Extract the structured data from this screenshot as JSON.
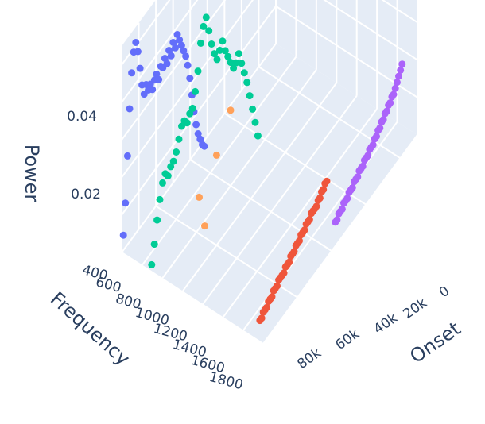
{
  "chart_data": {
    "type": "scatter3d",
    "axes": {
      "x": {
        "title": "Frequency",
        "ticks": [
          "400",
          "600",
          "800",
          "1000",
          "1200",
          "1400",
          "1600",
          "1800"
        ]
      },
      "y": {
        "title": "Onset",
        "ticks": [
          "0",
          "20k",
          "40k",
          "60k",
          "80k"
        ]
      },
      "z": {
        "title": "Power",
        "ticks": [
          "0.02",
          "0.04"
        ]
      }
    },
    "grid": true,
    "series": [
      {
        "color": "#636efa",
        "x": [
          400,
          403,
          407,
          411,
          414,
          418,
          421,
          425,
          429,
          432,
          436,
          439,
          443,
          447,
          450,
          454,
          457,
          461,
          465,
          468,
          472,
          475,
          479,
          483,
          486,
          490,
          493,
          497,
          501,
          504,
          508,
          511,
          515,
          519,
          522,
          526,
          529,
          533,
          537,
          540
        ],
        "y": [
          1000,
          2000,
          3000,
          4000,
          5000,
          6000,
          7000,
          8000,
          9000,
          10000,
          11000,
          12000,
          13000,
          14000,
          15000,
          16000,
          17000,
          18000,
          19000,
          20000,
          21000,
          22000,
          23000,
          24000,
          25000,
          26000,
          27000,
          28000,
          29000,
          30000,
          31000,
          32000,
          33000,
          34000,
          35000,
          36000,
          37000,
          38000,
          39000,
          40000
        ],
        "z": [
          0.004,
          0.012,
          0.024,
          0.036,
          0.045,
          0.05,
          0.052,
          0.049,
          0.044,
          0.039,
          0.036,
          0.038,
          0.036,
          0.037,
          0.035,
          0.037,
          0.038,
          0.036,
          0.039,
          0.038,
          0.04,
          0.038,
          0.041,
          0.039,
          0.042,
          0.04,
          0.043,
          0.041,
          0.039,
          0.037,
          0.035,
          0.032,
          0.028,
          0.023,
          0.018,
          0.014,
          0.011,
          0.009,
          0.007,
          0.006
        ]
      },
      {
        "color": "#00cc96",
        "x": [
          680,
          690,
          700,
          710,
          720,
          730,
          740,
          750,
          760,
          770,
          780,
          790,
          800,
          810,
          820,
          830,
          840,
          850,
          860,
          870,
          880,
          890,
          900,
          910,
          920,
          930,
          940,
          950,
          960,
          970,
          980,
          990,
          1000,
          1010,
          1020,
          1030,
          1040,
          1050,
          1060,
          1070
        ],
        "y": [
          1000,
          2000,
          3000,
          4000,
          5000,
          6000,
          7000,
          8000,
          9000,
          10000,
          11000,
          12000,
          13000,
          14000,
          15000,
          16000,
          17000,
          18000,
          19000,
          20000,
          21000,
          22000,
          23000,
          24000,
          25000,
          26000,
          27000,
          28000,
          29000,
          30000,
          31000,
          32000,
          33000,
          34000,
          35000,
          36000,
          37000,
          38000,
          39000,
          40000
        ],
        "z": [
          0.001,
          0.006,
          0.012,
          0.017,
          0.021,
          0.023,
          0.022,
          0.024,
          0.025,
          0.027,
          0.03,
          0.033,
          0.034,
          0.033,
          0.035,
          0.036,
          0.04,
          0.045,
          0.052,
          0.056,
          0.058,
          0.054,
          0.05,
          0.047,
          0.045,
          0.047,
          0.049,
          0.046,
          0.044,
          0.042,
          0.04,
          0.041,
          0.043,
          0.04,
          0.037,
          0.034,
          0.03,
          0.026,
          0.022,
          0.018
        ]
      },
      {
        "color": "#ef553b",
        "x": [
          1700,
          1700,
          1700,
          1700,
          1700,
          1700,
          1700,
          1700,
          1700,
          1700,
          1700,
          1700,
          1700,
          1700,
          1700,
          1700,
          1700,
          1700,
          1700,
          1700,
          1700,
          1700,
          1700,
          1700,
          1700,
          1700,
          1700,
          1700,
          1700,
          1700,
          1700,
          1700,
          1700,
          1700,
          1700,
          1700,
          1700,
          1700,
          1700,
          1700
        ],
        "y": [
          4000,
          5000,
          6000,
          7000,
          8000,
          9000,
          10000,
          11000,
          12000,
          13000,
          14000,
          15000,
          16000,
          17000,
          18000,
          19000,
          20000,
          21000,
          22000,
          23000,
          24000,
          25000,
          26000,
          27000,
          28000,
          29000,
          30000,
          31000,
          32000,
          33000,
          34000,
          35000,
          36000,
          37000,
          38000,
          39000,
          40000,
          41000,
          42000,
          43000
        ],
        "z": [
          0.002,
          0.002,
          0.003,
          0.003,
          0.003,
          0.004,
          0.004,
          0.004,
          0.005,
          0.005,
          0.005,
          0.006,
          0.006,
          0.006,
          0.006,
          0.007,
          0.007,
          0.007,
          0.008,
          0.008,
          0.008,
          0.009,
          0.009,
          0.009,
          0.01,
          0.01,
          0.01,
          0.011,
          0.011,
          0.011,
          0.012,
          0.012,
          0.012,
          0.012,
          0.013,
          0.013,
          0.014,
          0.014,
          0.015,
          0.015
        ]
      },
      {
        "color": "#ab63fa",
        "x": [
          1700,
          1700,
          1700,
          1700,
          1700,
          1700,
          1700,
          1700,
          1700,
          1700,
          1700,
          1700,
          1700,
          1700,
          1700,
          1700,
          1700,
          1700,
          1700,
          1700,
          1700,
          1700,
          1700,
          1700,
          1700,
          1700,
          1700,
          1700,
          1700,
          1700,
          1700,
          1700,
          1700,
          1700,
          1700,
          1700,
          1700,
          1700,
          1700,
          1700
        ],
        "y": [
          48000,
          49000,
          50000,
          51000,
          52000,
          53000,
          54000,
          55000,
          56000,
          57000,
          58000,
          59000,
          60000,
          61000,
          62000,
          63000,
          64000,
          65000,
          66000,
          67000,
          68000,
          69000,
          70000,
          71000,
          72000,
          73000,
          74000,
          75000,
          76000,
          77000,
          78000,
          79000,
          80000,
          81000,
          82000,
          83000,
          84000,
          85000,
          86000,
          87000
        ],
        "z": [
          0.001,
          0.001,
          0.002,
          0.002,
          0.002,
          0.003,
          0.003,
          0.003,
          0.004,
          0.004,
          0.004,
          0.005,
          0.005,
          0.005,
          0.006,
          0.006,
          0.006,
          0.007,
          0.007,
          0.007,
          0.008,
          0.008,
          0.008,
          0.009,
          0.009,
          0.01,
          0.01,
          0.011,
          0.011,
          0.012,
          0.012,
          0.013,
          0.013,
          0.014,
          0.014,
          0.015,
          0.016,
          0.017,
          0.018,
          0.019
        ]
      },
      {
        "color": "#ffa15a",
        "x": [
          900,
          980,
          1000,
          1020
        ],
        "y": [
          19000,
          11000,
          20000,
          27000
        ],
        "z": [
          0.004,
          0.018,
          0.024,
          0.032
        ]
      }
    ]
  }
}
